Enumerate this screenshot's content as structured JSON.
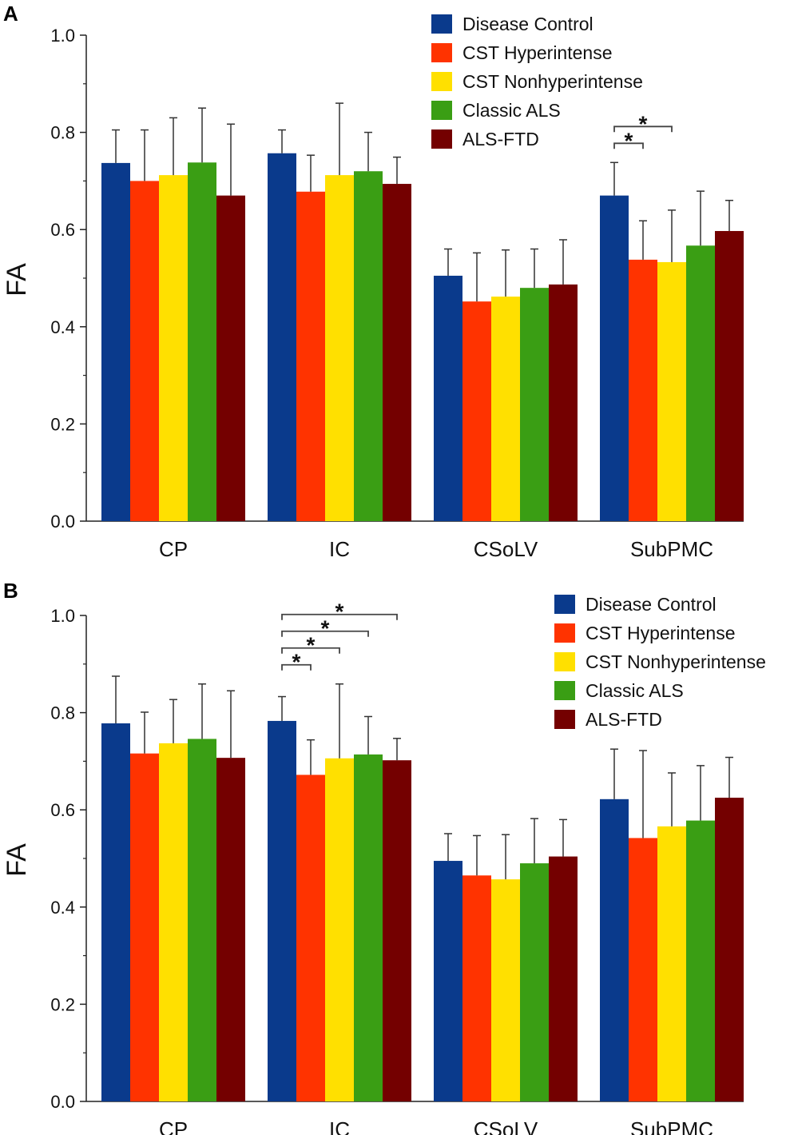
{
  "chart_data": [
    {
      "panel": "A",
      "type": "bar",
      "ylabel": "FA",
      "ylim": [
        0,
        1
      ],
      "yticks": [
        "0.0",
        "0.2",
        "0.4",
        "0.6",
        "0.8",
        "1.0"
      ],
      "categories": [
        "CP",
        "IC",
        "CSoLV",
        "SubPMC"
      ],
      "legend_position": "top-right",
      "series": [
        {
          "name": "Disease Control",
          "color": "#0a3a8c",
          "values": [
            0.737,
            0.757,
            0.505,
            0.67
          ],
          "errors": [
            0.068,
            0.048,
            0.055,
            0.068
          ]
        },
        {
          "name": "CST Hyperintense",
          "color": "#ff3300",
          "values": [
            0.7,
            0.678,
            0.452,
            0.538
          ],
          "errors": [
            0.105,
            0.075,
            0.1,
            0.08
          ]
        },
        {
          "name": "CST Nonhyperintense",
          "color": "#ffe000",
          "values": [
            0.712,
            0.712,
            0.462,
            0.533
          ],
          "errors": [
            0.118,
            0.148,
            0.096,
            0.107
          ]
        },
        {
          "name": "Classic ALS",
          "color": "#3a9e14",
          "values": [
            0.738,
            0.72,
            0.48,
            0.567
          ],
          "errors": [
            0.112,
            0.08,
            0.08,
            0.112
          ]
        },
        {
          "name": "ALS-FTD",
          "color": "#740000",
          "values": [
            0.67,
            0.694,
            0.487,
            0.597
          ],
          "errors": [
            0.147,
            0.055,
            0.092,
            0.063
          ]
        }
      ],
      "significance": [
        {
          "category": "SubPMC",
          "from": 0,
          "to": 1,
          "label": "*"
        },
        {
          "category": "SubPMC",
          "from": 0,
          "to": 2,
          "label": "*"
        }
      ]
    },
    {
      "panel": "B",
      "type": "bar",
      "ylabel": "FA",
      "ylim": [
        0,
        1
      ],
      "yticks": [
        "0.0",
        "0.2",
        "0.4",
        "0.6",
        "0.8",
        "1.0"
      ],
      "categories": [
        "CP",
        "IC",
        "CSoLV",
        "SubPMC"
      ],
      "legend_position": "top-right",
      "series": [
        {
          "name": "Disease Control",
          "color": "#0a3a8c",
          "values": [
            0.778,
            0.783,
            0.495,
            0.622
          ],
          "errors": [
            0.097,
            0.05,
            0.056,
            0.103
          ]
        },
        {
          "name": "CST Hyperintense",
          "color": "#ff3300",
          "values": [
            0.716,
            0.672,
            0.465,
            0.542
          ],
          "errors": [
            0.085,
            0.072,
            0.082,
            0.18
          ]
        },
        {
          "name": "CST Nonhyperintense",
          "color": "#ffe000",
          "values": [
            0.737,
            0.706,
            0.457,
            0.566
          ],
          "errors": [
            0.09,
            0.153,
            0.092,
            0.11
          ]
        },
        {
          "name": "Classic ALS",
          "color": "#3a9e14",
          "values": [
            0.746,
            0.714,
            0.49,
            0.578
          ],
          "errors": [
            0.113,
            0.078,
            0.092,
            0.113
          ]
        },
        {
          "name": "ALS-FTD",
          "color": "#740000",
          "values": [
            0.707,
            0.702,
            0.504,
            0.625
          ],
          "errors": [
            0.138,
            0.045,
            0.076,
            0.083
          ]
        }
      ],
      "significance": [
        {
          "category": "IC",
          "from": 0,
          "to": 1,
          "label": "*"
        },
        {
          "category": "IC",
          "from": 0,
          "to": 2,
          "label": "*"
        },
        {
          "category": "IC",
          "from": 0,
          "to": 3,
          "label": "*"
        },
        {
          "category": "IC",
          "from": 0,
          "to": 4,
          "label": "*"
        }
      ]
    }
  ]
}
